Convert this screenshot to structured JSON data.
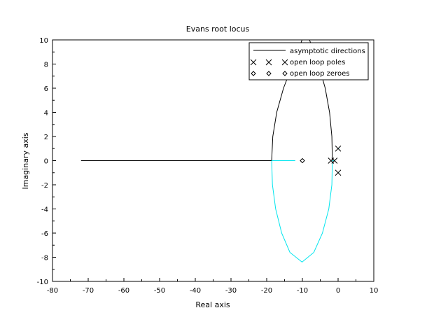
{
  "chart_data": {
    "type": "line",
    "title": "Evans root locus",
    "xlabel": "Real axis",
    "ylabel": "Imaginary axis",
    "xlim": [
      -80,
      10
    ],
    "ylim": [
      -10,
      10
    ],
    "xticks": [
      -80,
      -70,
      -60,
      -50,
      -40,
      -30,
      -20,
      -10,
      0,
      10
    ],
    "yticks": [
      -10,
      -8,
      -6,
      -4,
      -2,
      0,
      2,
      4,
      6,
      8,
      10
    ],
    "grid": false,
    "legend_position": "top-right",
    "legend": [
      {
        "label": "asymptotic directions",
        "marker": "line"
      },
      {
        "label": "open loop poles",
        "marker": "x"
      },
      {
        "label": "open loop zeroes",
        "marker": "diamond"
      }
    ],
    "series": [
      {
        "color": "#000000",
        "points": [
          [
            -72,
            0
          ],
          [
            -18.6,
            0
          ]
        ]
      },
      {
        "color": "#000000",
        "points": [
          [
            -18.6,
            0
          ],
          [
            -18.3,
            2.0
          ],
          [
            -17.2,
            4.0
          ],
          [
            -15.3,
            6.0
          ],
          [
            -12.7,
            8.0
          ],
          [
            -11.3,
            9.0
          ],
          [
            -10.1,
            10.0
          ]
        ]
      },
      {
        "color": "#000000",
        "points": [
          [
            -1.6,
            0
          ],
          [
            -1.75,
            2.0
          ],
          [
            -2.4,
            4.0
          ],
          [
            -3.6,
            6.0
          ],
          [
            -5.5,
            8.0
          ],
          [
            -6.8,
            9.0
          ],
          [
            -8.0,
            10.0
          ]
        ]
      },
      {
        "color": "#00e5ee",
        "points": [
          [
            -18.6,
            0
          ],
          [
            -18.4,
            -2.0
          ],
          [
            -17.5,
            -4.0
          ],
          [
            -15.8,
            -6.0
          ],
          [
            -13.5,
            -7.6
          ],
          [
            -10.1,
            -8.4
          ],
          [
            -6.8,
            -7.6
          ],
          [
            -4.4,
            -6.0
          ],
          [
            -2.6,
            -4.0
          ],
          [
            -1.75,
            -2.0
          ],
          [
            -1.6,
            0
          ]
        ]
      },
      {
        "color": "#00e5ee",
        "points": [
          [
            -18.6,
            0
          ],
          [
            -12.0,
            0
          ]
        ]
      },
      {
        "color": "#00e5ee",
        "points": [
          [
            -1.5,
            0
          ],
          [
            -1.0,
            0
          ]
        ]
      },
      {
        "color": "#00e5ee",
        "points": [
          [
            0,
            1
          ],
          [
            0.3,
            1.0
          ]
        ]
      },
      {
        "color": "#00e5ee",
        "points": [
          [
            0,
            -1
          ],
          [
            0.3,
            -1.0
          ]
        ]
      }
    ],
    "poles": [
      [
        -2,
        0
      ],
      [
        -1,
        0
      ],
      [
        0,
        1
      ],
      [
        0,
        -1
      ]
    ],
    "zeros": [
      [
        -10,
        0
      ]
    ]
  }
}
